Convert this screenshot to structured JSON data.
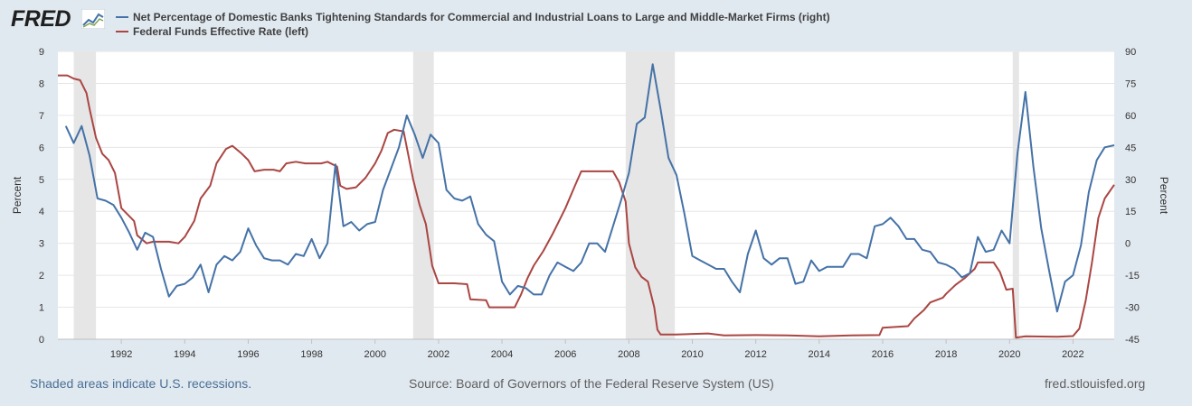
{
  "header": {
    "logo_text": "FRED",
    "logo_icon": "chart-line-icon",
    "legend": [
      {
        "label": "Net Percentage of Domestic Banks Tightening Standards for Commercial and Industrial Loans to Large and Middle-Market Firms (right)",
        "color": "#4572a7"
      },
      {
        "label": "Federal Funds Effective Rate (left)",
        "color": "#aa4643"
      }
    ]
  },
  "footer": {
    "note": "Shaded areas indicate U.S. recessions.",
    "source": "Source: Board of Governors of the Federal Reserve System (US)",
    "url": "fred.stlouisfed.org"
  },
  "chart_data": {
    "type": "line",
    "background_color": "#ffffff",
    "recession_color": "#e6e6e6",
    "grid": "horizontal",
    "xlim": [
      1990.0,
      2023.3
    ],
    "x_ticks": [
      1992,
      1994,
      1996,
      1998,
      2000,
      2002,
      2004,
      2006,
      2008,
      2010,
      2012,
      2014,
      2016,
      2018,
      2020,
      2022
    ],
    "left_axis": {
      "label": "Percent",
      "ylim": [
        0,
        9
      ],
      "ticks": [
        0,
        1,
        2,
        3,
        4,
        5,
        6,
        7,
        8,
        9
      ]
    },
    "right_axis": {
      "label": "Percent",
      "ylim": [
        -45,
        90
      ],
      "ticks": [
        -45,
        -30,
        -15,
        0,
        15,
        30,
        45,
        60,
        75,
        90
      ]
    },
    "recessions": [
      [
        1990.5,
        1991.2
      ],
      [
        2001.2,
        2001.85
      ],
      [
        2007.9,
        2009.45
      ],
      [
        2020.1,
        2020.3
      ]
    ],
    "series": [
      {
        "name": "Federal Funds Effective Rate (left)",
        "axis": "left",
        "color": "#aa4643",
        "points": [
          [
            1990.0,
            8.25
          ],
          [
            1990.3,
            8.25
          ],
          [
            1990.5,
            8.15
          ],
          [
            1990.7,
            8.1
          ],
          [
            1990.9,
            7.7
          ],
          [
            1991.0,
            7.2
          ],
          [
            1991.2,
            6.3
          ],
          [
            1991.4,
            5.8
          ],
          [
            1991.6,
            5.6
          ],
          [
            1991.8,
            5.2
          ],
          [
            1992.0,
            4.1
          ],
          [
            1992.2,
            3.9
          ],
          [
            1992.4,
            3.7
          ],
          [
            1992.5,
            3.25
          ],
          [
            1992.8,
            3.0
          ],
          [
            1993.0,
            3.05
          ],
          [
            1993.5,
            3.05
          ],
          [
            1993.8,
            3.0
          ],
          [
            1994.0,
            3.2
          ],
          [
            1994.3,
            3.7
          ],
          [
            1994.5,
            4.4
          ],
          [
            1994.8,
            4.8
          ],
          [
            1995.0,
            5.5
          ],
          [
            1995.3,
            5.95
          ],
          [
            1995.5,
            6.05
          ],
          [
            1995.8,
            5.8
          ],
          [
            1996.0,
            5.6
          ],
          [
            1996.2,
            5.25
          ],
          [
            1996.5,
            5.3
          ],
          [
            1996.8,
            5.3
          ],
          [
            1997.0,
            5.25
          ],
          [
            1997.2,
            5.5
          ],
          [
            1997.5,
            5.55
          ],
          [
            1997.8,
            5.5
          ],
          [
            1998.0,
            5.5
          ],
          [
            1998.3,
            5.5
          ],
          [
            1998.5,
            5.55
          ],
          [
            1998.8,
            5.4
          ],
          [
            1998.9,
            4.8
          ],
          [
            1999.1,
            4.7
          ],
          [
            1999.4,
            4.75
          ],
          [
            1999.7,
            5.05
          ],
          [
            2000.0,
            5.5
          ],
          [
            2000.2,
            5.9
          ],
          [
            2000.4,
            6.45
          ],
          [
            2000.6,
            6.55
          ],
          [
            2000.9,
            6.5
          ],
          [
            2001.0,
            6.0
          ],
          [
            2001.2,
            5.0
          ],
          [
            2001.4,
            4.2
          ],
          [
            2001.6,
            3.6
          ],
          [
            2001.8,
            2.3
          ],
          [
            2002.0,
            1.75
          ],
          [
            2002.5,
            1.75
          ],
          [
            2002.9,
            1.72
          ],
          [
            2003.0,
            1.25
          ],
          [
            2003.5,
            1.22
          ],
          [
            2003.6,
            1.0
          ],
          [
            2004.0,
            1.0
          ],
          [
            2004.4,
            1.0
          ],
          [
            2004.6,
            1.4
          ],
          [
            2004.8,
            1.9
          ],
          [
            2005.0,
            2.3
          ],
          [
            2005.3,
            2.75
          ],
          [
            2005.6,
            3.3
          ],
          [
            2006.0,
            4.1
          ],
          [
            2006.3,
            4.8
          ],
          [
            2006.5,
            5.25
          ],
          [
            2007.0,
            5.25
          ],
          [
            2007.5,
            5.25
          ],
          [
            2007.7,
            4.9
          ],
          [
            2007.9,
            4.3
          ],
          [
            2008.0,
            3.0
          ],
          [
            2008.2,
            2.25
          ],
          [
            2008.4,
            1.95
          ],
          [
            2008.6,
            1.8
          ],
          [
            2008.8,
            1.0
          ],
          [
            2008.9,
            0.3
          ],
          [
            2009.0,
            0.15
          ],
          [
            2009.5,
            0.15
          ],
          [
            2010.5,
            0.18
          ],
          [
            2011.0,
            0.12
          ],
          [
            2012.0,
            0.13
          ],
          [
            2013.0,
            0.12
          ],
          [
            2014.0,
            0.09
          ],
          [
            2015.0,
            0.12
          ],
          [
            2015.9,
            0.13
          ],
          [
            2016.0,
            0.36
          ],
          [
            2016.8,
            0.41
          ],
          [
            2017.0,
            0.65
          ],
          [
            2017.3,
            0.91
          ],
          [
            2017.5,
            1.15
          ],
          [
            2017.9,
            1.3
          ],
          [
            2018.0,
            1.42
          ],
          [
            2018.3,
            1.7
          ],
          [
            2018.6,
            1.92
          ],
          [
            2018.9,
            2.2
          ],
          [
            2019.0,
            2.4
          ],
          [
            2019.5,
            2.4
          ],
          [
            2019.7,
            2.1
          ],
          [
            2019.9,
            1.55
          ],
          [
            2020.1,
            1.58
          ],
          [
            2020.2,
            0.05
          ],
          [
            2020.5,
            0.09
          ],
          [
            2021.5,
            0.08
          ],
          [
            2022.0,
            0.1
          ],
          [
            2022.2,
            0.33
          ],
          [
            2022.4,
            1.2
          ],
          [
            2022.6,
            2.4
          ],
          [
            2022.8,
            3.8
          ],
          [
            2023.0,
            4.4
          ],
          [
            2023.3,
            4.83
          ]
        ]
      },
      {
        "name": "Net Percentage of Domestic Banks Tightening Standards for Commercial and Industrial Loans to Large and Middle-Market Firms (right)",
        "axis": "right",
        "color": "#4572a7",
        "points": [
          [
            1990.25,
            55
          ],
          [
            1990.5,
            47
          ],
          [
            1990.75,
            55
          ],
          [
            1991.0,
            41
          ],
          [
            1991.25,
            21
          ],
          [
            1991.5,
            20
          ],
          [
            1991.75,
            18
          ],
          [
            1992.0,
            12
          ],
          [
            1992.25,
            5
          ],
          [
            1992.5,
            -3
          ],
          [
            1992.75,
            5
          ],
          [
            1993.0,
            3
          ],
          [
            1993.25,
            -12
          ],
          [
            1993.5,
            -25
          ],
          [
            1993.75,
            -20
          ],
          [
            1994.0,
            -19
          ],
          [
            1994.25,
            -16
          ],
          [
            1994.5,
            -10
          ],
          [
            1994.75,
            -23
          ],
          [
            1995.0,
            -10
          ],
          [
            1995.25,
            -6
          ],
          [
            1995.5,
            -8
          ],
          [
            1995.75,
            -4
          ],
          [
            1996.0,
            7
          ],
          [
            1996.25,
            -1
          ],
          [
            1996.5,
            -7
          ],
          [
            1996.75,
            -8
          ],
          [
            1997.0,
            -8
          ],
          [
            1997.25,
            -10
          ],
          [
            1997.5,
            -5
          ],
          [
            1997.75,
            -6
          ],
          [
            1998.0,
            2
          ],
          [
            1998.25,
            -7
          ],
          [
            1998.5,
            0
          ],
          [
            1998.75,
            37
          ],
          [
            1999.0,
            8
          ],
          [
            1999.25,
            10
          ],
          [
            1999.5,
            6
          ],
          [
            1999.75,
            9
          ],
          [
            2000.0,
            10
          ],
          [
            2000.25,
            25
          ],
          [
            2000.5,
            35
          ],
          [
            2000.75,
            45
          ],
          [
            2001.0,
            60
          ],
          [
            2001.25,
            51
          ],
          [
            2001.5,
            40
          ],
          [
            2001.75,
            51
          ],
          [
            2002.0,
            47
          ],
          [
            2002.25,
            25
          ],
          [
            2002.5,
            21
          ],
          [
            2002.75,
            20
          ],
          [
            2003.0,
            22
          ],
          [
            2003.25,
            9
          ],
          [
            2003.5,
            4
          ],
          [
            2003.75,
            1
          ],
          [
            2004.0,
            -18
          ],
          [
            2004.25,
            -24
          ],
          [
            2004.5,
            -20
          ],
          [
            2004.75,
            -21
          ],
          [
            2005.0,
            -24
          ],
          [
            2005.25,
            -24
          ],
          [
            2005.5,
            -15
          ],
          [
            2005.75,
            -9
          ],
          [
            2006.0,
            -11
          ],
          [
            2006.25,
            -13
          ],
          [
            2006.5,
            -9
          ],
          [
            2006.75,
            0
          ],
          [
            2007.0,
            0
          ],
          [
            2007.25,
            -4
          ],
          [
            2007.75,
            20
          ],
          [
            2008.0,
            33
          ],
          [
            2008.25,
            56
          ],
          [
            2008.5,
            59
          ],
          [
            2008.75,
            84
          ],
          [
            2009.0,
            63
          ],
          [
            2009.25,
            40
          ],
          [
            2009.5,
            32
          ],
          [
            2009.75,
            14
          ],
          [
            2010.0,
            -6
          ],
          [
            2010.25,
            -8
          ],
          [
            2010.5,
            -10
          ],
          [
            2010.75,
            -12
          ],
          [
            2011.0,
            -12
          ],
          [
            2011.25,
            -18
          ],
          [
            2011.5,
            -23
          ],
          [
            2011.75,
            -5
          ],
          [
            2012.0,
            6
          ],
          [
            2012.25,
            -7
          ],
          [
            2012.5,
            -10
          ],
          [
            2012.75,
            -7
          ],
          [
            2013.0,
            -7
          ],
          [
            2013.25,
            -19
          ],
          [
            2013.5,
            -18
          ],
          [
            2013.75,
            -8
          ],
          [
            2014.0,
            -13
          ],
          [
            2014.25,
            -11
          ],
          [
            2014.5,
            -11
          ],
          [
            2014.75,
            -11
          ],
          [
            2015.0,
            -5
          ],
          [
            2015.25,
            -5
          ],
          [
            2015.5,
            -7
          ],
          [
            2015.75,
            8
          ],
          [
            2016.0,
            9
          ],
          [
            2016.25,
            12
          ],
          [
            2016.5,
            8
          ],
          [
            2016.75,
            2
          ],
          [
            2017.0,
            2
          ],
          [
            2017.25,
            -3
          ],
          [
            2017.5,
            -4
          ],
          [
            2017.75,
            -9
          ],
          [
            2018.0,
            -10
          ],
          [
            2018.25,
            -12
          ],
          [
            2018.5,
            -16
          ],
          [
            2018.75,
            -14
          ],
          [
            2019.0,
            3
          ],
          [
            2019.25,
            -4
          ],
          [
            2019.5,
            -3
          ],
          [
            2019.75,
            6
          ],
          [
            2020.0,
            0
          ],
          [
            2020.25,
            42
          ],
          [
            2020.5,
            71
          ],
          [
            2020.75,
            36
          ],
          [
            2021.0,
            7
          ],
          [
            2021.25,
            -13
          ],
          [
            2021.5,
            -32
          ],
          [
            2021.75,
            -18
          ],
          [
            2022.0,
            -15
          ],
          [
            2022.25,
            -1
          ],
          [
            2022.5,
            24
          ],
          [
            2022.75,
            39
          ],
          [
            2023.0,
            45
          ],
          [
            2023.3,
            46
          ]
        ]
      }
    ]
  }
}
